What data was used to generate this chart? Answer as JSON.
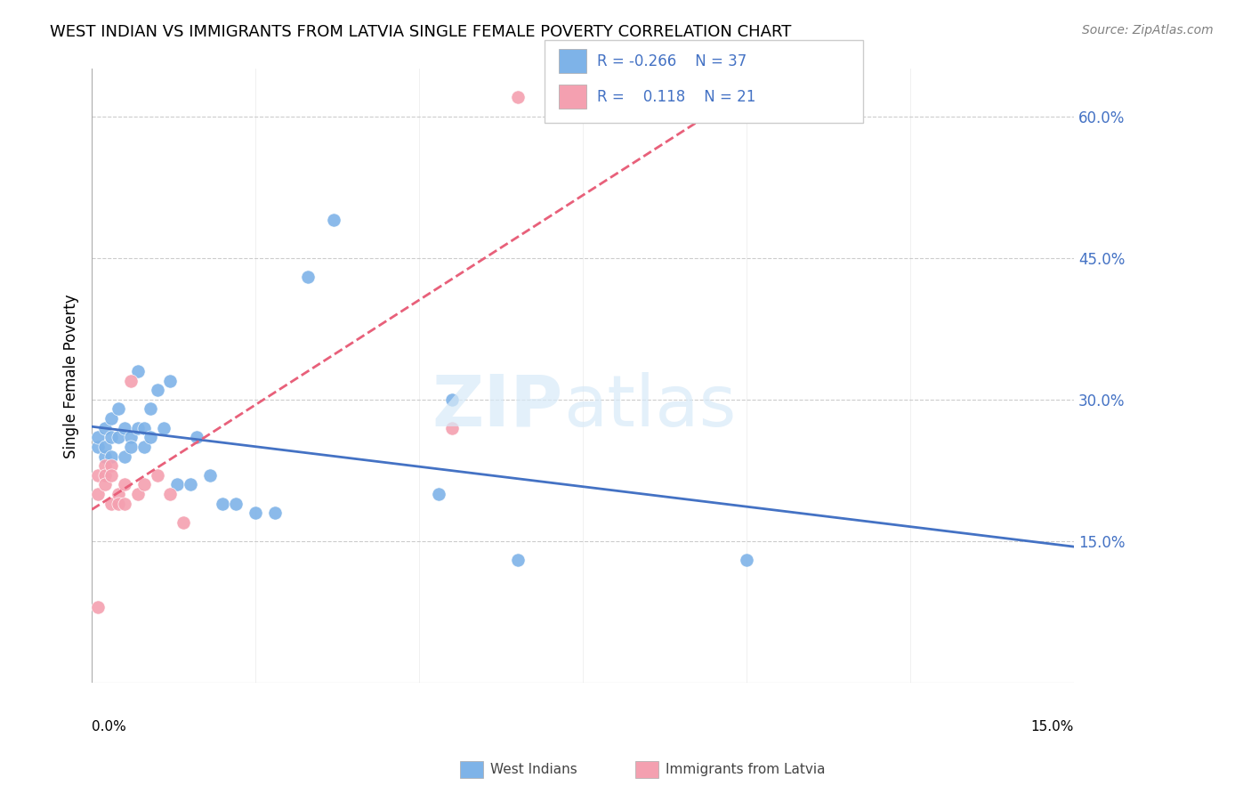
{
  "title": "WEST INDIAN VS IMMIGRANTS FROM LATVIA SINGLE FEMALE POVERTY CORRELATION CHART",
  "source": "Source: ZipAtlas.com",
  "ylabel": "Single Female Poverty",
  "xlim": [
    0.0,
    0.15
  ],
  "ylim": [
    0.0,
    0.65
  ],
  "yticks": [
    0.15,
    0.3,
    0.45,
    0.6
  ],
  "ytick_labels": [
    "15.0%",
    "30.0%",
    "45.0%",
    "60.0%"
  ],
  "legend_r_blue": "-0.266",
  "legend_n_blue": "37",
  "legend_r_pink": "0.118",
  "legend_n_pink": "21",
  "blue_color": "#7EB3E8",
  "pink_color": "#F4A0B0",
  "trendline_blue": "#4472C4",
  "trendline_pink": "#E8607A",
  "wi_x": [
    0.001,
    0.001,
    0.002,
    0.002,
    0.002,
    0.003,
    0.003,
    0.003,
    0.004,
    0.004,
    0.005,
    0.005,
    0.006,
    0.006,
    0.007,
    0.007,
    0.008,
    0.008,
    0.009,
    0.009,
    0.01,
    0.011,
    0.012,
    0.013,
    0.015,
    0.016,
    0.018,
    0.02,
    0.022,
    0.025,
    0.028,
    0.033,
    0.037,
    0.053,
    0.055,
    0.065,
    0.1
  ],
  "wi_y": [
    0.25,
    0.26,
    0.24,
    0.27,
    0.25,
    0.24,
    0.26,
    0.28,
    0.29,
    0.26,
    0.27,
    0.24,
    0.26,
    0.25,
    0.33,
    0.27,
    0.27,
    0.25,
    0.29,
    0.26,
    0.31,
    0.27,
    0.32,
    0.21,
    0.21,
    0.26,
    0.22,
    0.19,
    0.19,
    0.18,
    0.18,
    0.43,
    0.49,
    0.2,
    0.3,
    0.13,
    0.13
  ],
  "lat_x": [
    0.001,
    0.001,
    0.001,
    0.002,
    0.002,
    0.002,
    0.003,
    0.003,
    0.003,
    0.004,
    0.004,
    0.005,
    0.005,
    0.006,
    0.007,
    0.008,
    0.01,
    0.012,
    0.014,
    0.055,
    0.065
  ],
  "lat_y": [
    0.22,
    0.2,
    0.08,
    0.23,
    0.22,
    0.21,
    0.23,
    0.22,
    0.19,
    0.2,
    0.19,
    0.21,
    0.19,
    0.32,
    0.2,
    0.21,
    0.22,
    0.2,
    0.17,
    0.27,
    0.62
  ]
}
